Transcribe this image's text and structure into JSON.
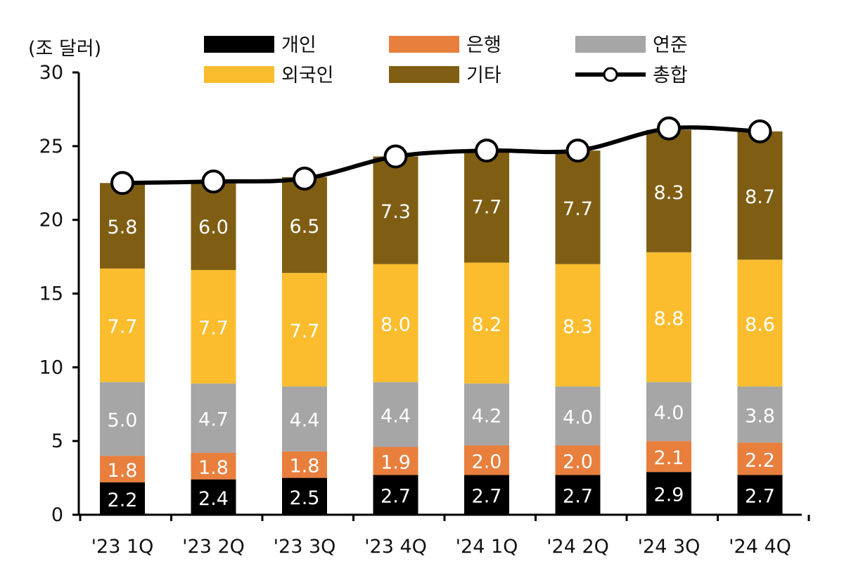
{
  "chart_data": {
    "type": "bar",
    "stacked": true,
    "unit_label": "(조 달러)",
    "categories": [
      "'23 1Q",
      "'23 2Q",
      "'23 3Q",
      "'23 4Q",
      "'24 1Q",
      "'24 2Q",
      "'24 3Q",
      "'24 4Q"
    ],
    "ylim": [
      0,
      30
    ],
    "yticks": [
      0,
      5,
      10,
      15,
      20,
      25,
      30
    ],
    "series": [
      {
        "name": "개인",
        "color": "#000000",
        "values": [
          2.2,
          2.4,
          2.5,
          2.7,
          2.7,
          2.7,
          2.9,
          2.7
        ],
        "labels": [
          "2.2",
          "2.4",
          "2.5",
          "2.7",
          "2.7",
          "2.7",
          "2.9",
          "2.7"
        ]
      },
      {
        "name": "은행",
        "color": "#e97f3d",
        "values": [
          1.8,
          1.8,
          1.8,
          1.9,
          2.0,
          2.0,
          2.1,
          2.2
        ],
        "labels": [
          "1.8",
          "1.8",
          "1.8",
          "1.9",
          "2.0",
          "2.0",
          "2.1",
          "2.2"
        ]
      },
      {
        "name": "연준",
        "color": "#a6a6a6",
        "values": [
          5.0,
          4.7,
          4.4,
          4.4,
          4.2,
          4.0,
          4.0,
          3.8
        ],
        "labels": [
          "5.0",
          "4.7",
          "4.4",
          "4.4",
          "4.2",
          "4.0",
          "4.0",
          "3.8"
        ]
      },
      {
        "name": "외국인",
        "color": "#fbbd2e",
        "values": [
          7.7,
          7.7,
          7.7,
          8.0,
          8.2,
          8.3,
          8.8,
          8.6
        ],
        "labels": [
          "7.7",
          "7.7",
          "7.7",
          "8.0",
          "8.2",
          "8.3",
          "8.8",
          "8.6"
        ]
      },
      {
        "name": "기타",
        "color": "#7f5e13",
        "values": [
          5.8,
          6.0,
          6.5,
          7.3,
          7.7,
          7.7,
          8.3,
          8.7
        ],
        "labels": [
          "5.8",
          "6.0",
          "6.5",
          "7.3",
          "7.7",
          "7.7",
          "8.3",
          "8.7"
        ]
      }
    ],
    "line": {
      "name": "총합",
      "color": "#000000",
      "values": [
        22.5,
        22.6,
        22.8,
        24.3,
        24.7,
        24.7,
        26.2,
        26.0
      ]
    },
    "legend": {
      "rows": [
        [
          "개인",
          "은행",
          "연준"
        ],
        [
          "외국인",
          "기타",
          "총합"
        ]
      ]
    }
  }
}
